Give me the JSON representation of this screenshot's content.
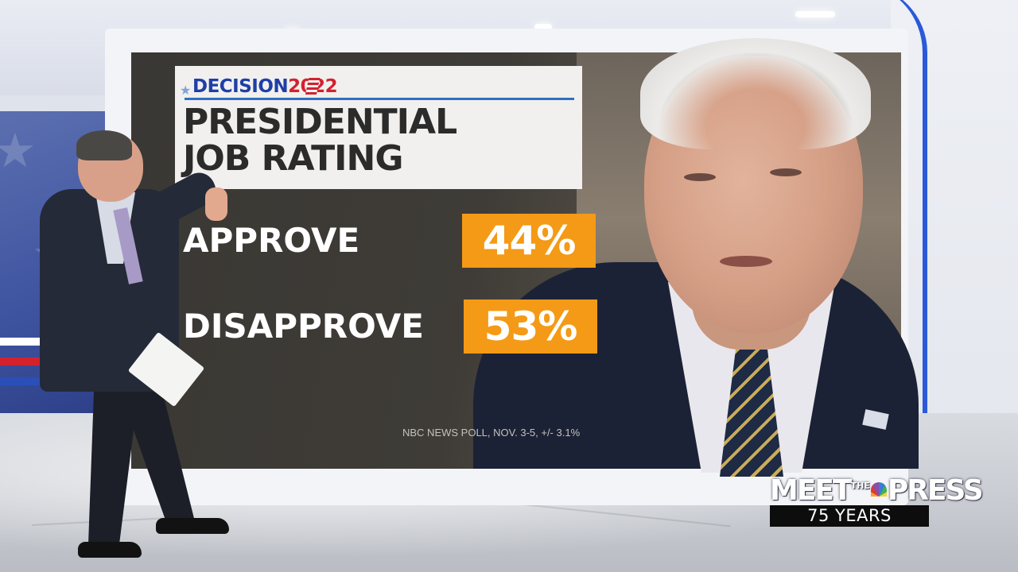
{
  "graphic": {
    "decision_word": "DECISION",
    "decision_year": "2022",
    "title_line1": "PRESIDENTIAL",
    "title_line2": "JOB RATING",
    "approve_label": "APPROVE",
    "approve_value": "44%",
    "disapprove_label": "DISAPPROVE",
    "disapprove_value": "53%",
    "source": "NBC NEWS POLL, NOV. 3-5, +/- 3.1%"
  },
  "logo": {
    "meet": "MEET",
    "the": "THE",
    "press": "PRESS",
    "years": "75 YEARS"
  },
  "colors": {
    "accent_orange": "#f49a16",
    "decision_blue": "#1f3fa6",
    "decision_red": "#d4212e",
    "frame_blue": "#2a5ad8"
  }
}
